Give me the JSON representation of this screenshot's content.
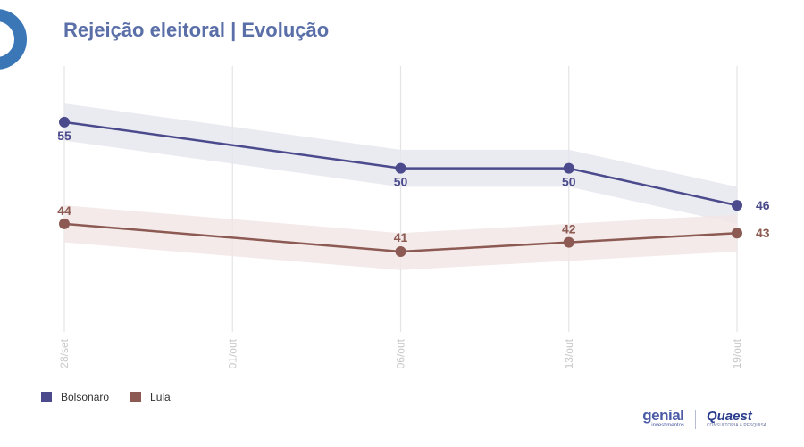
{
  "title": "Rejeição eleitoral | Evolução",
  "colors": {
    "title": "#5a6fa8",
    "bolsonaro": "#4a4a8c",
    "lula": "#8c5a52",
    "bolsonaro_band": "#e6e6ef",
    "lula_band": "#f2e6e6",
    "grid": "#e4e4e4",
    "corner_arc": "#3b77b6"
  },
  "chart_data": {
    "type": "line",
    "categories": [
      "28/set",
      "01/out",
      "06/out",
      "13/out",
      "19/out"
    ],
    "ylim": [
      30,
      60
    ],
    "band_halfwidth": 2,
    "grid": "vertical",
    "series": [
      {
        "name": "Bolsonaro",
        "color": "#4a4a8c",
        "band_color": "#e6e6ef",
        "points": [
          [
            0,
            55
          ],
          [
            2,
            50
          ],
          [
            3,
            50
          ],
          [
            4,
            46
          ]
        ],
        "labels": [
          "55",
          "50",
          "50",
          "46"
        ]
      },
      {
        "name": "Lula",
        "color": "#8c5a52",
        "band_color": "#f2e6e6",
        "points": [
          [
            0,
            44
          ],
          [
            2,
            41
          ],
          [
            3,
            42
          ],
          [
            4,
            43
          ]
        ],
        "labels": [
          "44",
          "41",
          "42",
          "43"
        ]
      }
    ],
    "legend": "bottom-left"
  },
  "legend": {
    "items": [
      {
        "label": "Bolsonaro",
        "color": "#4a4a8c"
      },
      {
        "label": "Lula",
        "color": "#8c5a52"
      }
    ]
  },
  "logos": {
    "genial_word": "genial",
    "genial_sub": "investimentos",
    "quaest_word": "Quaest",
    "quaest_sub": "CONSULTORIA & PESQUISA"
  }
}
